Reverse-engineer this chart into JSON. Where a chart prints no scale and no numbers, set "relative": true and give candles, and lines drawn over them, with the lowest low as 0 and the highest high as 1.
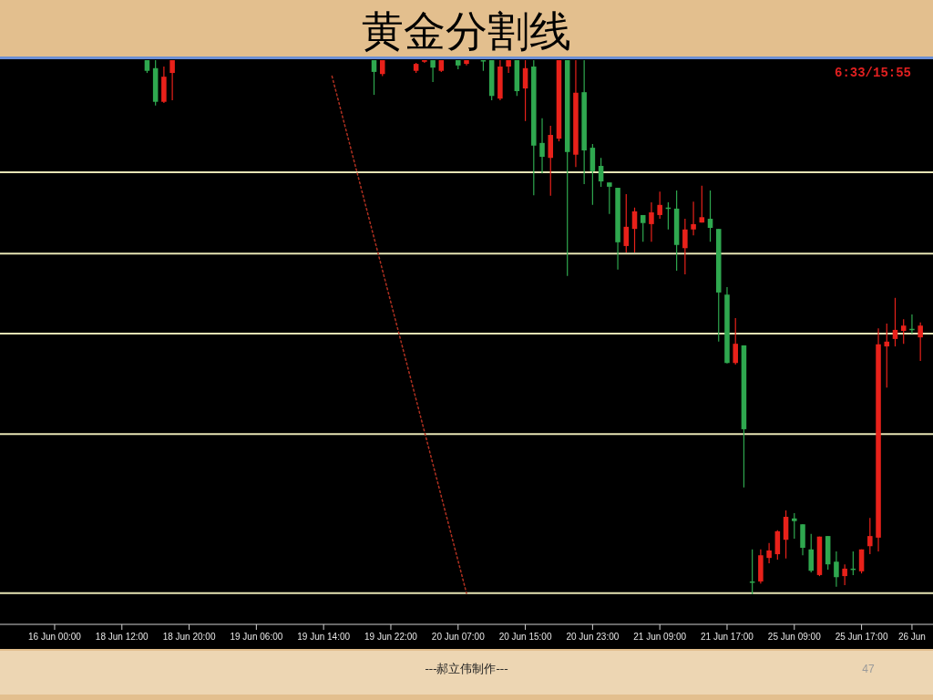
{
  "chart_data": {
    "type": "candlestick",
    "title": "黄金分割线",
    "relative": true,
    "tick_labels": "x",
    "categories": [
      null,
      null,
      null,
      null,
      null,
      null,
      "16 Jun 00:00",
      null,
      null,
      null,
      null,
      null,
      null,
      null,
      "18 Jun 12:00",
      null,
      null,
      null,
      null,
      null,
      null,
      null,
      "18 Jun 20:00",
      null,
      null,
      null,
      null,
      null,
      null,
      null,
      "19 Jun 06:00",
      null,
      null,
      null,
      null,
      null,
      null,
      null,
      "19 Jun 14:00",
      null,
      null,
      null,
      null,
      null,
      null,
      null,
      "19 Jun 22:00",
      null,
      null,
      null,
      null,
      null,
      null,
      null,
      "20 Jun 07:00",
      null,
      null,
      null,
      null,
      null,
      null,
      null,
      "20 Jun 15:00",
      null,
      null,
      null,
      null,
      null,
      null,
      null,
      "20 Jun 23:00",
      null,
      null,
      null,
      null,
      null,
      null,
      null,
      "21 Jun 09:00",
      null,
      null,
      null,
      null,
      null,
      null,
      null,
      "21 Jun 17:00",
      null,
      null,
      null,
      null,
      null,
      null,
      null,
      "25 Jun 09:00",
      null,
      null,
      null,
      null,
      null,
      null,
      null,
      "25 Jun 17:00",
      null,
      null,
      null,
      null,
      null,
      "26 Jun",
      null,
      null
    ],
    "ohlc": [
      null,
      null,
      null,
      null,
      null,
      null,
      null,
      null,
      null,
      null,
      null,
      null,
      null,
      null,
      null,
      null,
      null,
      [
        1,
        1,
        0.976,
        0.98
      ],
      [
        0.985,
        1,
        0.915,
        0.922
      ],
      [
        0.922,
        0.988,
        0.92,
        0.969
      ],
      [
        0.976,
        1,
        0.925,
        1
      ],
      null,
      null,
      null,
      null,
      null,
      null,
      null,
      null,
      null,
      null,
      null,
      null,
      null,
      null,
      null,
      null,
      null,
      null,
      null,
      null,
      null,
      null,
      null,
      [
        1,
        1,
        0.935,
        0.978
      ],
      [
        0.974,
        1,
        0.97,
        1
      ],
      null,
      null,
      null,
      [
        0.98,
        0.995,
        0.976,
        0.993
      ],
      [
        0.997,
        1,
        0.995,
        1
      ],
      [
        1,
        1,
        0.959,
        0.986
      ],
      [
        0.98,
        1,
        0.978,
        1
      ],
      null,
      [
        1,
        1,
        0.983,
        0.99
      ],
      [
        0.993,
        1,
        0.99,
        1
      ],
      null,
      [
        1,
        1,
        0.98,
        1
      ],
      [
        1,
        1,
        0.925,
        0.933
      ],
      [
        0.928,
        1,
        0.925,
        0.988
      ],
      [
        0.988,
        1,
        0.976,
        1
      ],
      [
        1,
        1,
        0.933,
        0.942
      ],
      [
        0.947,
        1,
        0.886,
        0.985
      ],
      [
        0.988,
        1,
        0.747,
        0.84
      ],
      [
        0.845,
        0.891,
        0.788,
        0.819
      ],
      [
        0.817,
        0.877,
        0.746,
        0.86
      ],
      [
        0.853,
        1,
        0.848,
        1
      ],
      [
        1,
        1,
        0.596,
        0.828
      ],
      [
        0.823,
        1,
        0.8,
        0.939
      ],
      [
        0.94,
        1,
        0.768,
        0.831
      ],
      [
        0.836,
        0.843,
        0.729,
        0.792
      ],
      [
        0.802,
        0.817,
        0.763,
        0.773
      ],
      [
        0.771,
        0.771,
        0.712,
        0.763
      ],
      [
        0.761,
        0.761,
        0.608,
        0.659
      ],
      [
        0.652,
        0.749,
        0.64,
        0.688
      ],
      [
        0.684,
        0.724,
        0.64,
        0.717
      ],
      [
        0.71,
        0.71,
        0.66,
        0.695
      ],
      [
        0.693,
        0.734,
        0.66,
        0.715
      ],
      [
        0.71,
        0.754,
        0.703,
        0.729
      ],
      [
        0.724,
        0.734,
        0.683,
        0.722
      ],
      [
        0.722,
        0.756,
        0.606,
        0.654
      ],
      [
        0.648,
        0.703,
        0.599,
        0.683
      ],
      [
        0.683,
        0.735,
        0.672,
        0.693
      ],
      [
        0.696,
        0.765,
        0.696,
        0.706
      ],
      [
        0.703,
        0.756,
        0.66,
        0.686
      ],
      [
        0.684,
        0.684,
        0.473,
        0.565
      ],
      [
        0.561,
        0.575,
        0.432,
        0.433
      ],
      [
        0.433,
        0.517,
        0.43,
        0.469
      ],
      [
        0.466,
        0.466,
        0.2,
        0.309
      ],
      [
        0.024,
        0.084,
        0,
        0.022
      ],
      [
        0.024,
        0.084,
        0.02,
        0.073
      ],
      [
        0.068,
        0.096,
        0.058,
        0.082
      ],
      [
        0.075,
        0.12,
        0.065,
        0.118
      ],
      [
        0.102,
        0.157,
        0.067,
        0.145
      ],
      [
        0.142,
        0.152,
        0.104,
        0.137
      ],
      [
        0.131,
        0.131,
        0.073,
        0.087
      ],
      [
        0.084,
        0.113,
        0.041,
        0.044
      ],
      [
        0.036,
        0.108,
        0.034,
        0.108
      ],
      [
        0.109,
        0.109,
        0.046,
        0.056
      ],
      [
        0.061,
        0.08,
        0.014,
        0.032
      ],
      [
        0.034,
        0.056,
        0.017,
        0.048
      ],
      [
        0.048,
        0.08,
        0.036,
        0.046
      ],
      [
        0.043,
        0.084,
        0.039,
        0.084
      ],
      [
        0.09,
        0.143,
        0.075,
        0.109
      ],
      [
        0.106,
        0.498,
        0.08,
        0.468
      ],
      [
        0.464,
        0.507,
        0.387,
        0.473
      ],
      [
        0.478,
        0.555,
        0.464,
        0.495
      ],
      [
        0.493,
        0.515,
        0.469,
        0.503
      ],
      [
        0.497,
        0.524,
        0.488,
        0.495
      ],
      [
        0.481,
        0.509,
        0.437,
        0.503
      ],
      null
    ],
    "colors": [
      null,
      null,
      null,
      null,
      null,
      null,
      null,
      null,
      null,
      null,
      null,
      null,
      null,
      null,
      null,
      null,
      null,
      "#2fa84f",
      "#2fa84f",
      "#e8211a",
      "#e8211a",
      null,
      null,
      null,
      null,
      null,
      null,
      null,
      null,
      null,
      null,
      null,
      null,
      null,
      null,
      null,
      null,
      null,
      null,
      null,
      null,
      null,
      null,
      null,
      "#2fa84f",
      "#e8211a",
      null,
      null,
      null,
      "#e8211a",
      "#e8211a",
      "#2fa84f",
      "#e8211a",
      null,
      "#2fa84f",
      "#e8211a",
      null,
      "#2fa84f",
      "#2fa84f",
      "#e8211a",
      "#e8211a",
      "#2fa84f",
      "#e8211a",
      "#2fa84f",
      "#2fa84f",
      "#e8211a",
      "#e8211a",
      "#2fa84f",
      "#e8211a",
      "#2fa84f",
      "#2fa84f",
      "#2fa84f",
      "#2fa84f",
      "#2fa84f",
      "#e8211a",
      "#e8211a",
      "#2fa84f",
      "#e8211a",
      "#e8211a",
      "#2fa84f",
      "#2fa84f",
      "#e8211a",
      "#e8211a",
      "#e8211a",
      "#2fa84f",
      "#2fa84f",
      "#2fa84f",
      "#e8211a",
      "#2fa84f",
      "#2fa84f",
      "#e8211a",
      "#e8211a",
      "#e8211a",
      "#e8211a",
      "#2fa84f",
      "#2fa84f",
      "#2fa84f",
      "#e8211a",
      "#2fa84f",
      "#2fa84f",
      "#e8211a",
      "#2fa84f",
      "#e8211a",
      "#e8211a",
      "#e8211a",
      "#e8211a",
      "#e8211a",
      "#e8211a",
      "#2fa84f",
      "#e8211a",
      null
    ],
    "series": [
      {
        "type": "line",
        "values": [
          null,
          null,
          null,
          null,
          null,
          null,
          null,
          null,
          null,
          null,
          null,
          null,
          null,
          null,
          null,
          null,
          null,
          null,
          null,
          null,
          null,
          null,
          null,
          null,
          null,
          null,
          null,
          null,
          null,
          null,
          null,
          null,
          null,
          null,
          null,
          null,
          null,
          null,
          null,
          0.97,
          null,
          null,
          null,
          null,
          null,
          null,
          null,
          null,
          null,
          null,
          null,
          null,
          null,
          null,
          null,
          0.002,
          null,
          null,
          null,
          null,
          null,
          null,
          null,
          null,
          null,
          null,
          null,
          null,
          null,
          null,
          null,
          null,
          null,
          null,
          null,
          null,
          null,
          null,
          null,
          null,
          null,
          null,
          null,
          null,
          null,
          null,
          null,
          null,
          null,
          null,
          null,
          null,
          null,
          null,
          null,
          null,
          null,
          null,
          null,
          null,
          null,
          null,
          null,
          null,
          null,
          null,
          null,
          null,
          null,
          null,
          null
        ],
        "color": "#b03020",
        "line_style": "dotted"
      }
    ],
    "ref_lines": [
      {
        "axis": "y",
        "value": 0.79,
        "color": "#e6e4b4"
      },
      {
        "axis": "y",
        "value": 0.638,
        "color": "#e6e4b4"
      },
      {
        "axis": "y",
        "value": 0.488,
        "color": "#e6e4b4"
      },
      {
        "axis": "y",
        "value": 0.3,
        "color": "#e6e4b4"
      },
      {
        "axis": "y",
        "value": 0.002,
        "color": "#e6e4b4"
      }
    ],
    "annotations": [
      "6:33/15:55",
      "---郝立伟制作---",
      "47"
    ]
  }
}
